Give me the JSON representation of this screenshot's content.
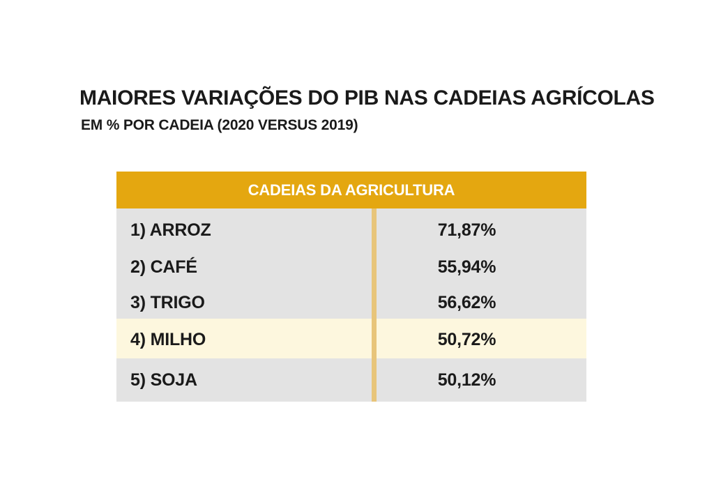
{
  "chart_data": {
    "type": "table",
    "title": "MAIORES VARIAÇÕES DO PIB NAS CADEIAS AGRÍCOLAS",
    "subtitle": "EM % POR CADEIA (2020 VERSUS 2019)",
    "header": "CADEIAS DA AGRICULTURA",
    "rows": [
      {
        "label": "1) ARROZ",
        "value": "71,87%",
        "highlighted": false
      },
      {
        "label": "2) CAFÉ",
        "value": "55,94%",
        "highlighted": false
      },
      {
        "label": "3) TRIGO",
        "value": "56,62%",
        "highlighted": false
      },
      {
        "label": "4) MILHO",
        "value": "50,72%",
        "highlighted": true
      },
      {
        "label": "5) SOJA",
        "value": "50,12%",
        "highlighted": false
      }
    ],
    "colors": {
      "header_bg": "#e4a710",
      "header_text": "#ffffff",
      "body_bg": "#e3e3e3",
      "highlight_bg": "#fdf7de",
      "divider": "#e8c57a"
    }
  }
}
